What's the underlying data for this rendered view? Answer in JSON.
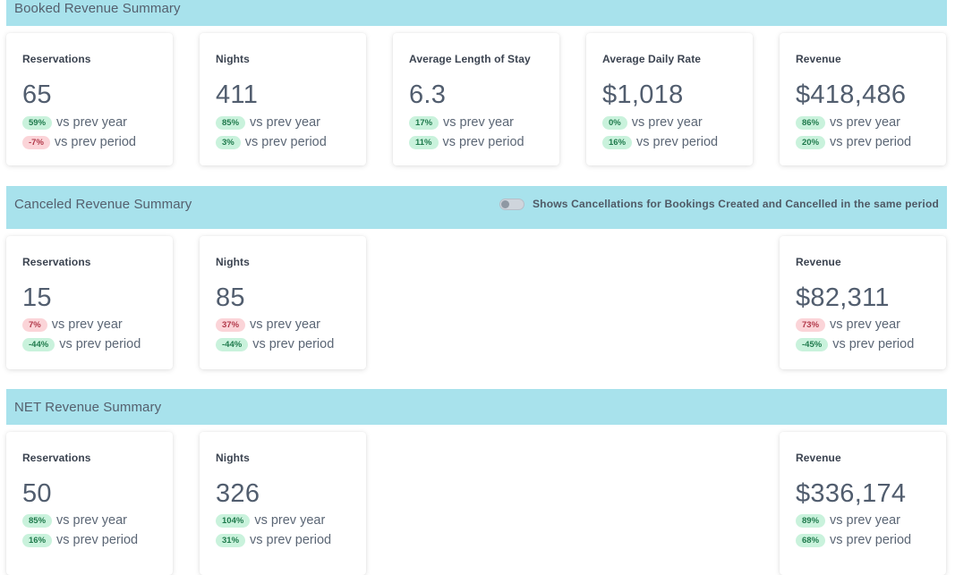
{
  "booked": {
    "title": "Booked Revenue Summary",
    "cards": [
      {
        "label": "Reservations",
        "value": "65",
        "year_pct": "59%",
        "year_dir": "up",
        "period_pct": "-7%",
        "period_dir": "down"
      },
      {
        "label": "Nights",
        "value": "411",
        "year_pct": "85%",
        "year_dir": "up",
        "period_pct": "3%",
        "period_dir": "up"
      },
      {
        "label": "Average Length of Stay",
        "value": "6.3",
        "year_pct": "17%",
        "year_dir": "up",
        "period_pct": "11%",
        "period_dir": "up"
      },
      {
        "label": "Average Daily Rate",
        "value": "$1,018",
        "year_pct": "0%",
        "year_dir": "up",
        "period_pct": "16%",
        "period_dir": "up"
      },
      {
        "label": "Revenue",
        "value": "$418,486",
        "year_pct": "86%",
        "year_dir": "up",
        "period_pct": "20%",
        "period_dir": "up"
      }
    ]
  },
  "canceled": {
    "title": "Canceled Revenue Summary",
    "toggle_label": "Shows Cancellations for Bookings Created and Cancelled in the same period",
    "toggle_on": false,
    "cards": [
      {
        "label": "Reservations",
        "value": "15",
        "year_pct": "7%",
        "year_dir": "down",
        "period_pct": "-44%",
        "period_dir": "up"
      },
      {
        "label": "Nights",
        "value": "85",
        "year_pct": "37%",
        "year_dir": "down",
        "period_pct": "-44%",
        "period_dir": "up"
      },
      {
        "label": "Revenue",
        "value": "$82,311",
        "year_pct": "73%",
        "year_dir": "down",
        "period_pct": "-45%",
        "period_dir": "up"
      }
    ]
  },
  "net": {
    "title": "NET Revenue Summary",
    "cards": [
      {
        "label": "Reservations",
        "value": "50",
        "year_pct": "85%",
        "year_dir": "up",
        "period_pct": "16%",
        "period_dir": "up"
      },
      {
        "label": "Nights",
        "value": "326",
        "year_pct": "104%",
        "year_dir": "up",
        "period_pct": "31%",
        "period_dir": "up"
      },
      {
        "label": "Revenue",
        "value": "$336,174",
        "year_pct": "89%",
        "year_dir": "up",
        "period_pct": "68%",
        "period_dir": "up"
      }
    ]
  },
  "labels": {
    "vs_prev_year": "vs prev year",
    "vs_prev_period": "vs prev period"
  },
  "colors": {
    "header_bg": "#a8e2ec",
    "badge_up_bg": "#c9f2dc",
    "badge_down_bg": "#fbd4d8"
  }
}
